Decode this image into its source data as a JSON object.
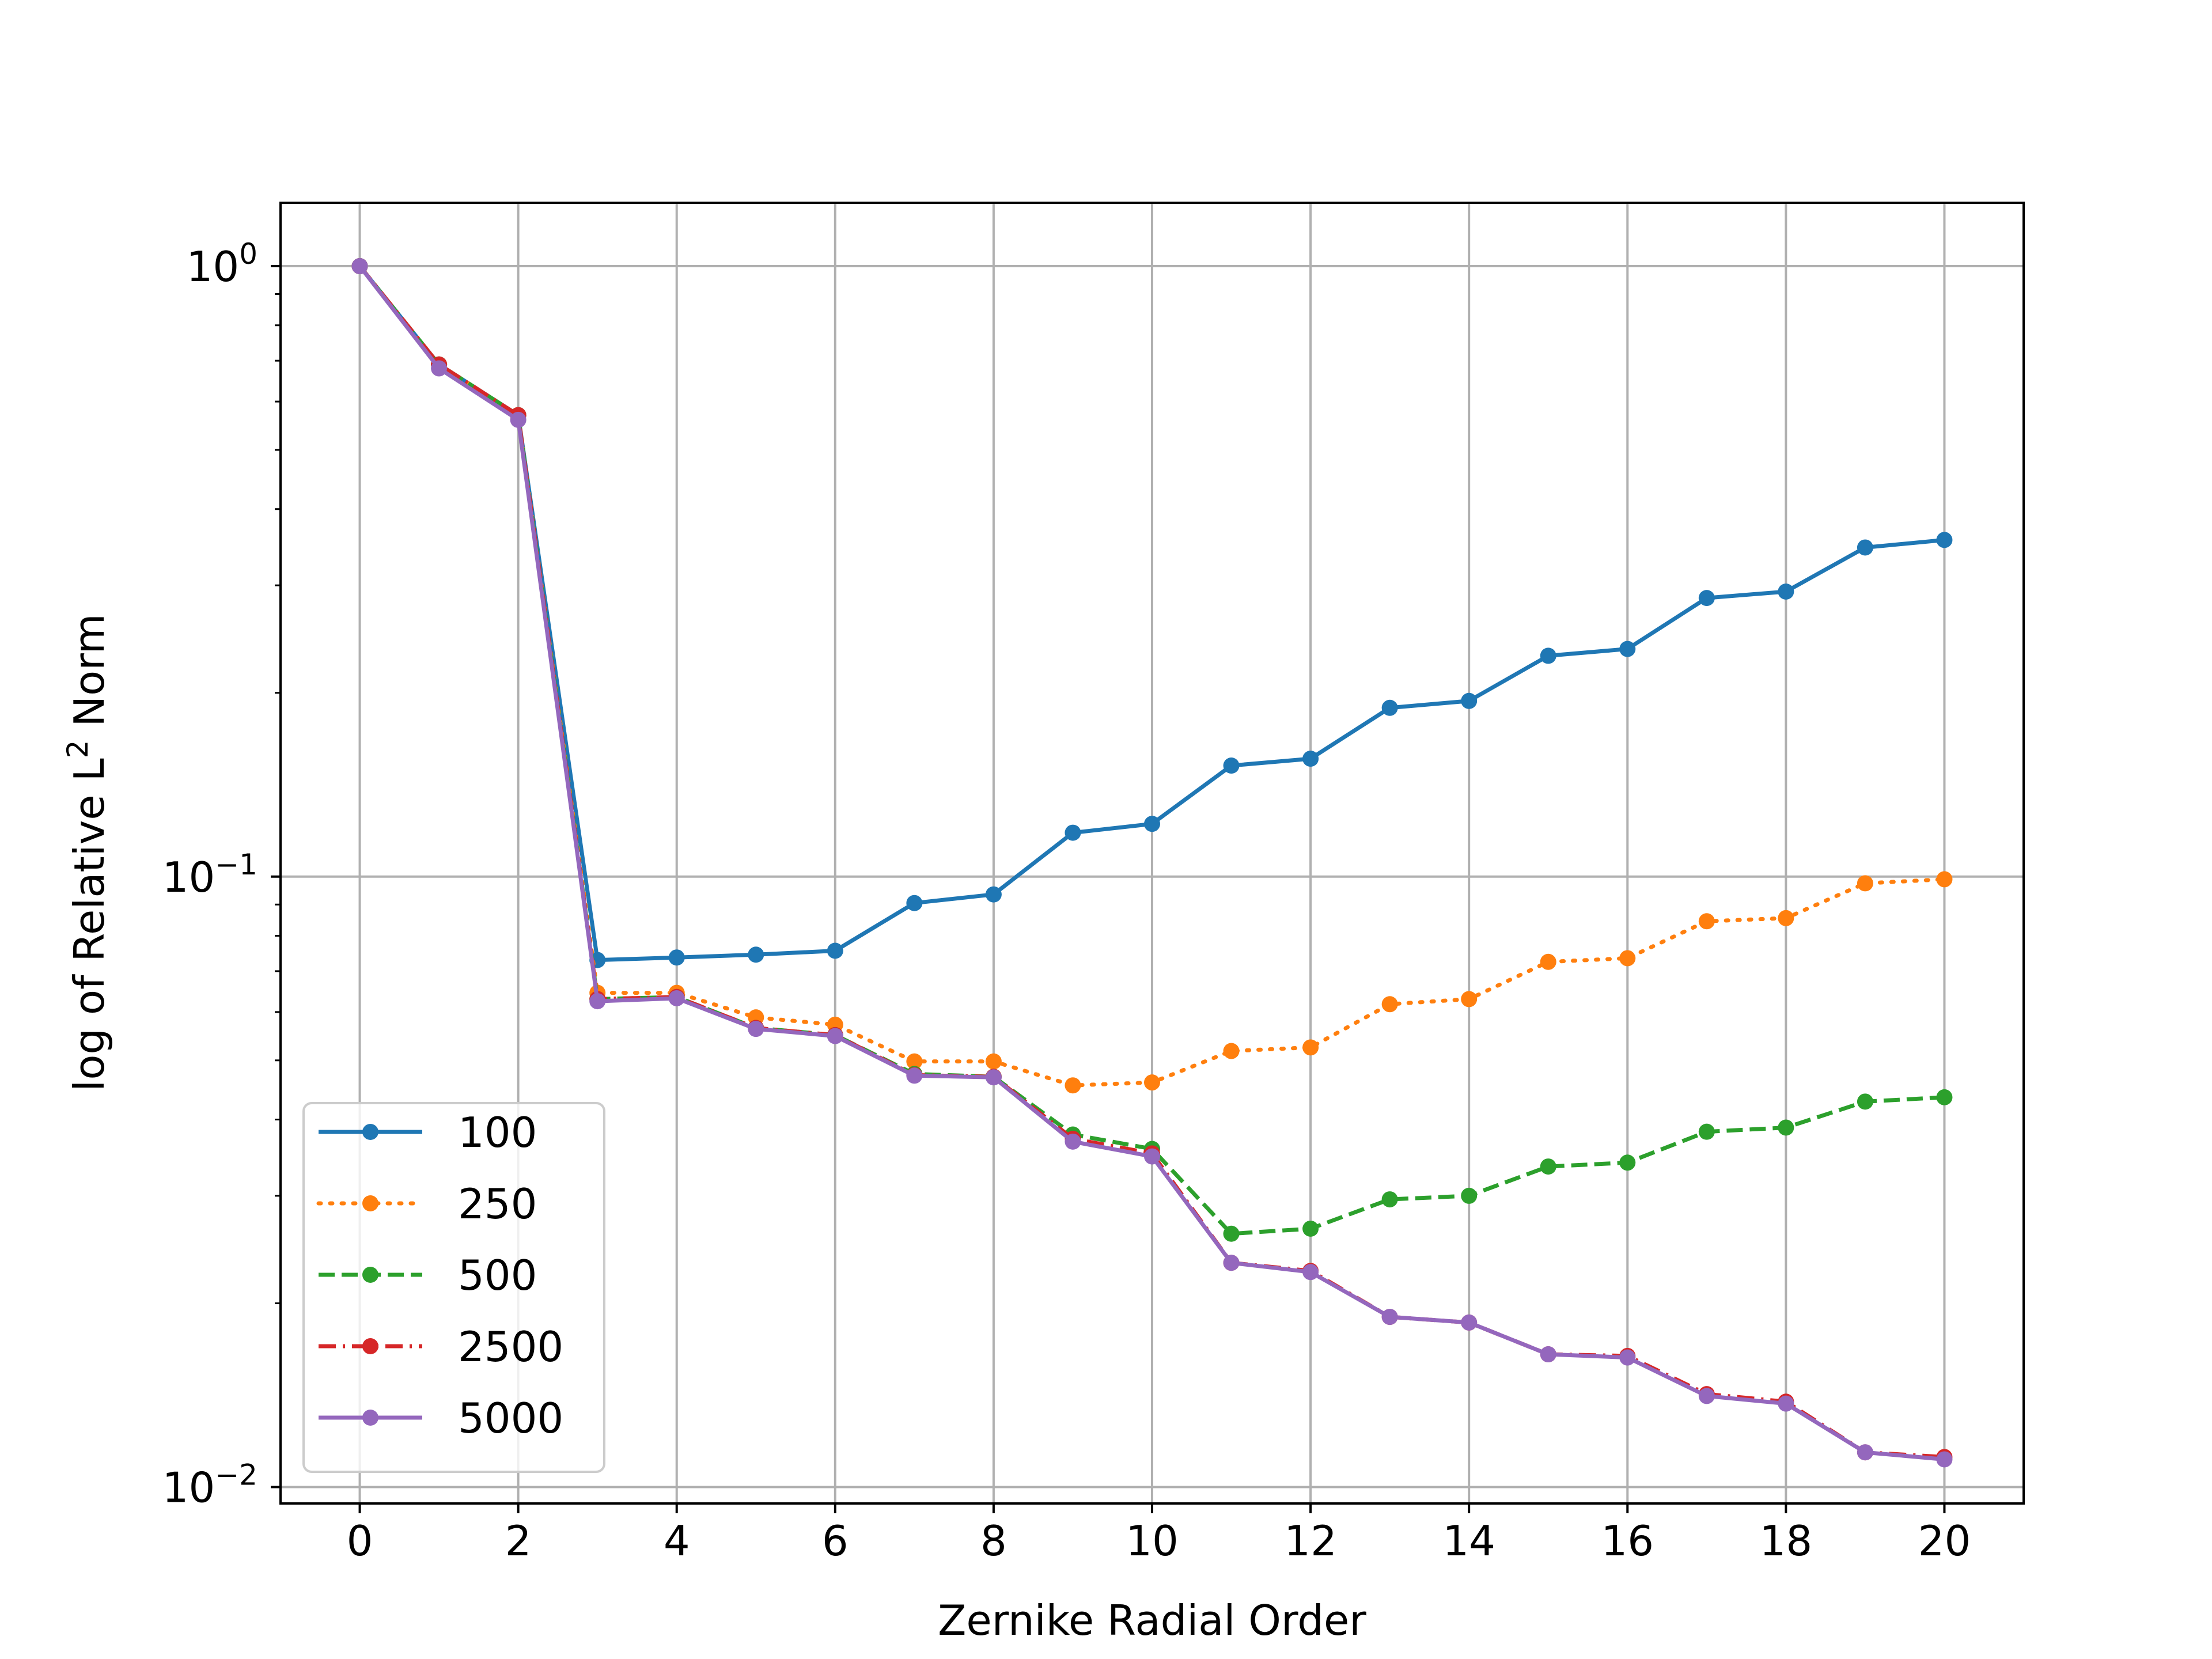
{
  "chart_data": {
    "type": "line",
    "title": "",
    "xlabel": "Zernike Radial Order",
    "ylabel": "log of Relative L",
    "ylabel_sup": "2",
    "ylabel_suffix": " Norm",
    "xlim": [
      -1,
      21
    ],
    "ylim": [
      0.0094,
      1.27
    ],
    "yscale": "log",
    "grid": true,
    "legend_position": "lower-left",
    "x": [
      0,
      1,
      2,
      3,
      4,
      5,
      6,
      7,
      8,
      9,
      10,
      11,
      12,
      13,
      14,
      15,
      16,
      17,
      18,
      19,
      20
    ],
    "x_ticks": [
      {
        "value": 0,
        "label": "0"
      },
      {
        "value": 2,
        "label": "2"
      },
      {
        "value": 4,
        "label": "4"
      },
      {
        "value": 6,
        "label": "6"
      },
      {
        "value": 8,
        "label": "8"
      },
      {
        "value": 10,
        "label": "10"
      },
      {
        "value": 12,
        "label": "12"
      },
      {
        "value": 14,
        "label": "14"
      },
      {
        "value": 16,
        "label": "16"
      },
      {
        "value": 18,
        "label": "18"
      },
      {
        "value": 20,
        "label": "20"
      }
    ],
    "y_ticks": [
      {
        "value": 1,
        "base": "10",
        "exp": "0"
      },
      {
        "value": 0.1,
        "base": "10",
        "exp": "−1"
      },
      {
        "value": 0.01,
        "base": "10",
        "exp": "−2"
      }
    ],
    "series": [
      {
        "name": "100",
        "color": "#1f77b4",
        "dash": "solid",
        "values": [
          1.0,
          0.69,
          0.57,
          0.073,
          0.0737,
          0.0745,
          0.0756,
          0.0905,
          0.0935,
          0.118,
          0.122,
          0.152,
          0.156,
          0.189,
          0.194,
          0.23,
          0.236,
          0.286,
          0.293,
          0.346,
          0.356
        ]
      },
      {
        "name": "250",
        "color": "#ff7f0e",
        "dash": "dotted",
        "values": [
          1.0,
          0.69,
          0.57,
          0.0645,
          0.0645,
          0.0588,
          0.0572,
          0.0498,
          0.0498,
          0.0455,
          0.046,
          0.0518,
          0.0525,
          0.0618,
          0.063,
          0.0725,
          0.0735,
          0.0845,
          0.0855,
          0.0975,
          0.099
        ]
      },
      {
        "name": "500",
        "color": "#2ca02c",
        "dash": "dashed",
        "values": [
          1.0,
          0.69,
          0.57,
          0.063,
          0.0635,
          0.0565,
          0.055,
          0.0475,
          0.047,
          0.0378,
          0.0358,
          0.026,
          0.0265,
          0.0296,
          0.03,
          0.0335,
          0.034,
          0.0382,
          0.0388,
          0.0428,
          0.0435
        ]
      },
      {
        "name": "2500",
        "color": "#d62728",
        "dash": "dashdot",
        "values": [
          1.0,
          0.69,
          0.57,
          0.063,
          0.0635,
          0.0565,
          0.055,
          0.0473,
          0.047,
          0.0372,
          0.0352,
          0.0233,
          0.0226,
          0.019,
          0.0186,
          0.0165,
          0.0164,
          0.0142,
          0.0138,
          0.0114,
          0.0112
        ]
      },
      {
        "name": "5000",
        "color": "#9467bd",
        "dash": "solid",
        "values": [
          1.0,
          0.68,
          0.56,
          0.0625,
          0.0632,
          0.0563,
          0.0548,
          0.0472,
          0.0469,
          0.0368,
          0.0348,
          0.0233,
          0.0225,
          0.019,
          0.0186,
          0.0165,
          0.0163,
          0.0141,
          0.0137,
          0.0114,
          0.0111
        ]
      }
    ]
  }
}
